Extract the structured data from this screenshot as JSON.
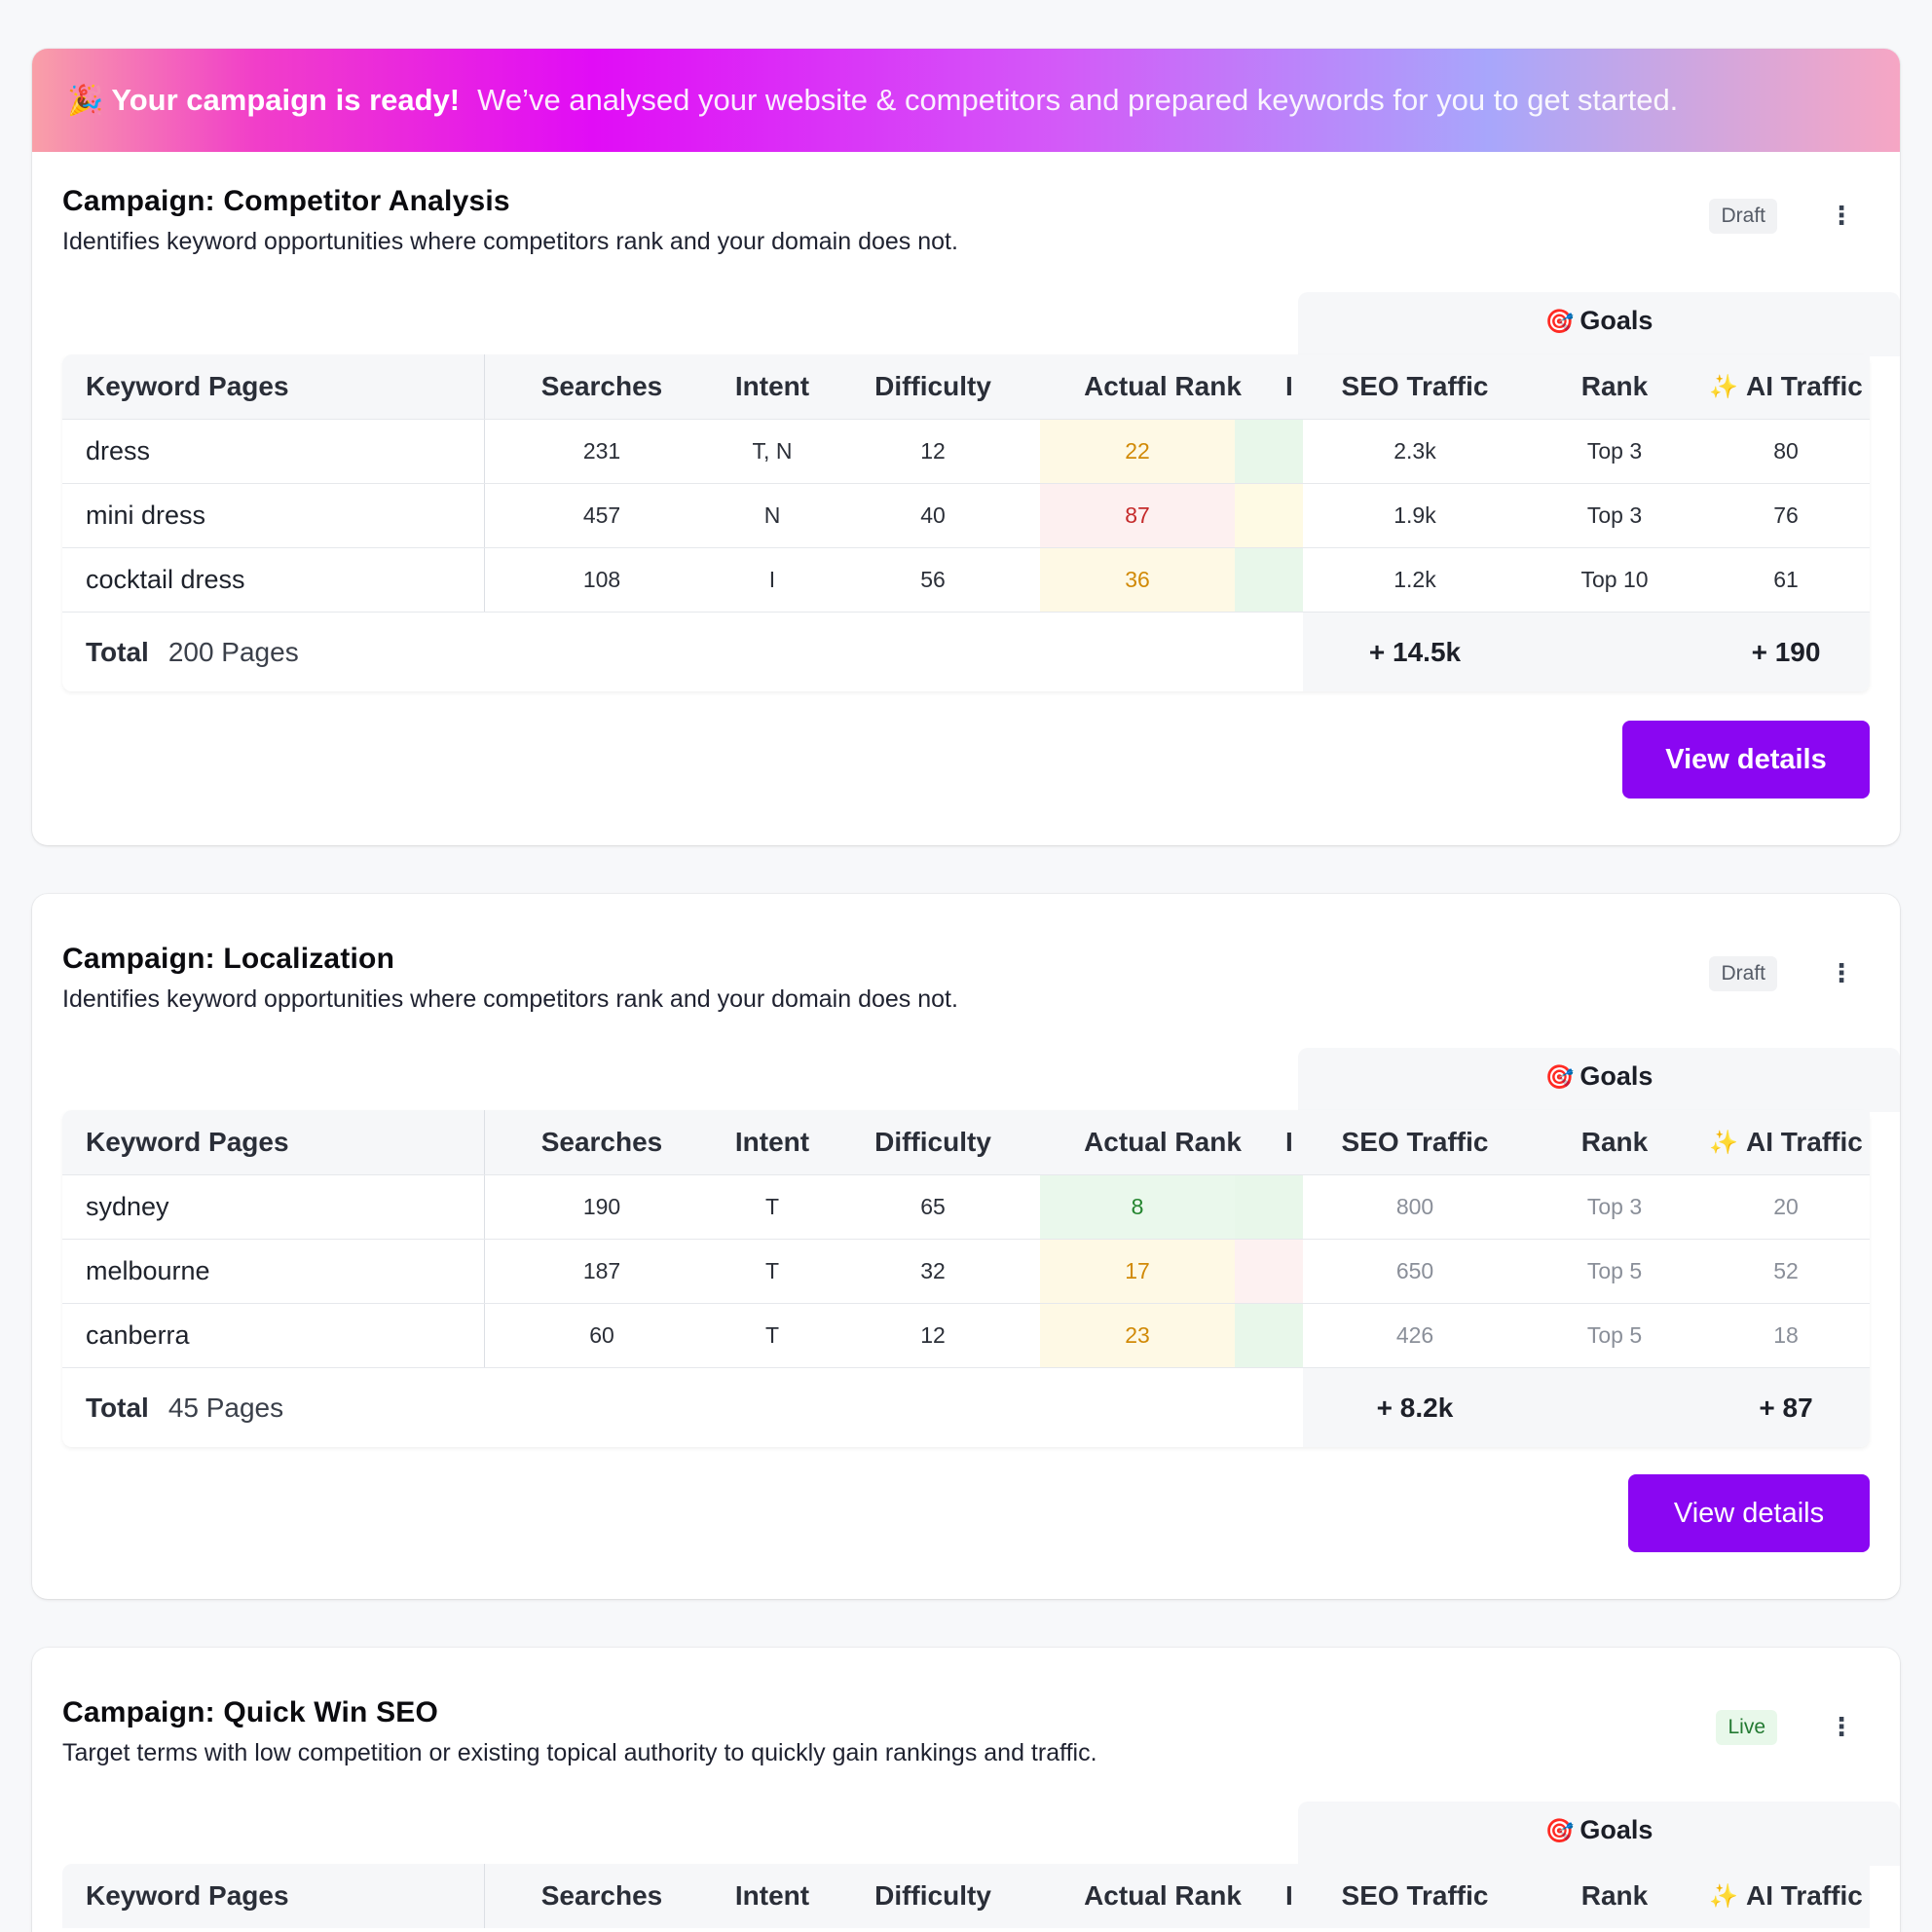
{
  "banner": {
    "emoji": "🎉",
    "title": "Your campaign is ready!",
    "message": "We’ve analysed your website & competitors and prepared keywords for you to get started."
  },
  "columns": {
    "keyword": "Keyword Pages",
    "searches": "Searches",
    "intent": "Intent",
    "difficulty": "Difficulty",
    "actual_rank": "Actual Rank",
    "truncated": "I",
    "seo_traffic": "SEO Traffic",
    "rank": "Rank",
    "ai_traffic": "AI Traffic",
    "ai_icon": "✨",
    "goals": "Goals",
    "goals_icon": "🎯",
    "total_label": "Total"
  },
  "colors": {
    "accent": "#8a06f2",
    "rank_yellow": "#d18a07",
    "rank_red": "#c52b2b",
    "rank_green": "#24852f"
  },
  "campaigns": [
    {
      "title": "Campaign: Competitor Analysis",
      "description": "Identifies keyword opportunities where competitors rank and your domain does not.",
      "status": "Draft",
      "rows": [
        {
          "keyword": "dress",
          "searches": "231",
          "intent": "T, N",
          "difficulty": "12",
          "rank": "22",
          "rank_color": "yellow",
          "strip": "green",
          "seo": "2.3k",
          "goal_rank": "Top 3",
          "ai": "80"
        },
        {
          "keyword": "mini dress",
          "searches": "457",
          "intent": "N",
          "difficulty": "40",
          "rank": "87",
          "rank_color": "red",
          "strip": "yellow",
          "seo": "1.9k",
          "goal_rank": "Top 3",
          "ai": "76"
        },
        {
          "keyword": "cocktail dress",
          "searches": "108",
          "intent": "I",
          "difficulty": "56",
          "rank": "36",
          "rank_color": "yellow",
          "strip": "green",
          "seo": "1.2k",
          "goal_rank": "Top 10",
          "ai": "61"
        }
      ],
      "total_pages": "200 Pages",
      "total_seo": "+ 14.5k",
      "total_ai": "+ 190",
      "button": "View details"
    },
    {
      "title": "Campaign: Localization",
      "description": "Identifies keyword opportunities where competitors rank and your domain does not.",
      "status": "Draft",
      "rows": [
        {
          "keyword": "sydney",
          "searches": "190",
          "intent": "T",
          "difficulty": "65",
          "rank": "8",
          "rank_color": "green",
          "strip": "green",
          "seo": "800",
          "goal_rank": "Top 3",
          "ai": "20"
        },
        {
          "keyword": "melbourne",
          "searches": "187",
          "intent": "T",
          "difficulty": "32",
          "rank": "17",
          "rank_color": "yellow",
          "strip": "red",
          "seo": "650",
          "goal_rank": "Top 5",
          "ai": "52"
        },
        {
          "keyword": "canberra",
          "searches": "60",
          "intent": "T",
          "difficulty": "12",
          "rank": "23",
          "rank_color": "yellow",
          "strip": "green",
          "seo": "426",
          "goal_rank": "Top 5",
          "ai": "18"
        }
      ],
      "total_pages": "45 Pages",
      "total_seo": "+ 8.2k",
      "total_ai": "+ 87",
      "button": "View details"
    },
    {
      "title": "Campaign: Quick Win SEO",
      "description": "Target terms with low competition or existing topical authority to quickly gain rankings and traffic.",
      "status": "Live"
    }
  ]
}
